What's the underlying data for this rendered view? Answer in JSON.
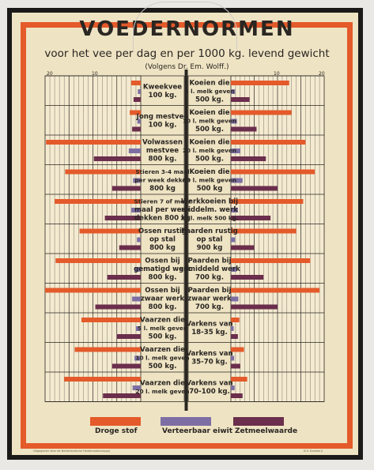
{
  "poster": {
    "title": "VOEDERNORMEN",
    "subtitle": "voor het vee per dag en per 1000 kg. levend gewicht",
    "source": "(Volgens Dr. Em. Wolff.)",
    "footer_left": "Uitgegeven door de Nederlandsche Heidemaatschappij",
    "footer_right": "N.V. Drukkerij"
  },
  "colors": {
    "droge_stof": "#e45a2a",
    "verteerbaar_eiwit": "#7d6fa3",
    "zetmeelwaarde": "#6b2e4c",
    "card": "#eee3c3",
    "frame": "#e45a2a",
    "text": "#2a2622"
  },
  "chart_data": {
    "type": "bar",
    "layout": "mirrored horizontal bars",
    "axis_ticks": {
      "left": [
        "20",
        "10"
      ],
      "right": [
        "10",
        "20"
      ]
    },
    "xlim": [
      0,
      20
    ],
    "legend": [
      "Droge stof",
      "Verteerbaar eiwit",
      "Zetmeelwaarde"
    ],
    "left_panel": [
      {
        "label": [
          "Kweekvee",
          "100 kg."
        ],
        "droge_stof": 2.0,
        "verteerbaar_eiwit": 0.6,
        "zetmeelwaarde": 1.5
      },
      {
        "label": [
          "Jong mestvee",
          "100 kg."
        ],
        "droge_stof": 2.3,
        "verteerbaar_eiwit": 0.7,
        "zetmeelwaarde": 1.8
      },
      {
        "label": [
          "Volwassen",
          "mestvee",
          "800 kg."
        ],
        "droge_stof": 19.8,
        "verteerbaar_eiwit": 2.5,
        "zetmeelwaarde": 9.8
      },
      {
        "label": [
          "Stieren 3-4 maal",
          "per week dekken",
          "800 kg"
        ],
        "droge_stof": 15.8,
        "verteerbaar_eiwit": 1.6,
        "zetmeelwaarde": 6.0
      },
      {
        "label": [
          "Stieren 7 of meer",
          "maal per week",
          "dekken 800 kg"
        ],
        "droge_stof": 18.0,
        "verteerbaar_eiwit": 2.0,
        "zetmeelwaarde": 7.5
      },
      {
        "label": [
          "Ossen rustig",
          "op stal",
          "800 kg"
        ],
        "droge_stof": 12.8,
        "verteerbaar_eiwit": 0.8,
        "zetmeelwaarde": 4.5
      },
      {
        "label": [
          "Ossen bij",
          "gematigd werk",
          "800 kg."
        ],
        "droge_stof": 17.8,
        "verteerbaar_eiwit": 1.3,
        "zetmeelwaarde": 7.0
      },
      {
        "label": [
          "Ossen bij",
          "zwaar werk",
          "800 kg."
        ],
        "droge_stof": 20.0,
        "verteerbaar_eiwit": 1.8,
        "zetmeelwaarde": 9.5
      },
      {
        "label": [
          "Vaarzen die",
          "5 l. melk geven",
          "500 kg."
        ],
        "droge_stof": 12.4,
        "verteerbaar_eiwit": 1.0,
        "zetmeelwaarde": 5.0
      },
      {
        "label": [
          "Vaarzen die",
          "10 l. melk geven",
          "500 kg."
        ],
        "droge_stof": 13.8,
        "verteerbaar_eiwit": 1.3,
        "zetmeelwaarde": 6.0
      },
      {
        "label": [
          "Vaarzen die",
          "20 l. melk geven"
        ],
        "droge_stof": 16.0,
        "verteerbaar_eiwit": 1.7,
        "zetmeelwaarde": 7.9
      }
    ],
    "right_panel": [
      {
        "label": [
          "Koeien die",
          "5 l. melk geven",
          "500 kg."
        ],
        "droge_stof": 12.5,
        "verteerbaar_eiwit": 0.9,
        "zetmeelwaarde": 4.0
      },
      {
        "label": [
          "Koeien die",
          "10 l. melk geven",
          "500 kg."
        ],
        "droge_stof": 13.0,
        "verteerbaar_eiwit": 1.3,
        "zetmeelwaarde": 5.5
      },
      {
        "label": [
          "Koeien die",
          "20 l. melk geven",
          "500 kg."
        ],
        "droge_stof": 16.0,
        "verteerbaar_eiwit": 2.0,
        "zetmeelwaarde": 7.5
      },
      {
        "label": [
          "Koeien die",
          "30 l. melk geven",
          "500 kg"
        ],
        "droge_stof": 18.0,
        "verteerbaar_eiwit": 2.5,
        "zetmeelwaarde": 10.0
      },
      {
        "label": [
          "Werkkoeien bij",
          "middelm. werk",
          "20 l. melk 500 kg."
        ],
        "droge_stof": 15.5,
        "verteerbaar_eiwit": 1.5,
        "zetmeelwaarde": 8.5
      },
      {
        "label": [
          "Paarden rustig",
          "op stal",
          "900 kg"
        ],
        "droge_stof": 14.0,
        "verteerbaar_eiwit": 0.9,
        "zetmeelwaarde": 5.0
      },
      {
        "label": [
          "Paarden bij",
          "gemiddeld werk",
          "700 kg."
        ],
        "droge_stof": 17.0,
        "verteerbaar_eiwit": 1.2,
        "zetmeelwaarde": 7.0
      },
      {
        "label": [
          "Paarden bij",
          "zwaar werk",
          "700 kg."
        ],
        "droge_stof": 19.0,
        "verteerbaar_eiwit": 1.6,
        "zetmeelwaarde": 10.0
      },
      {
        "label": [
          "Varkens van",
          "18-35 kg."
        ],
        "droge_stof": 1.8,
        "verteerbaar_eiwit": 0.6,
        "zetmeelwaarde": 1.5
      },
      {
        "label": [
          "Varkens van",
          "35-70 kg."
        ],
        "droge_stof": 2.8,
        "verteerbaar_eiwit": 0.7,
        "zetmeelwaarde": 2.0
      },
      {
        "label": [
          "Varkens van",
          "70-100 kg."
        ],
        "droge_stof": 3.5,
        "verteerbaar_eiwit": 0.8,
        "zetmeelwaarde": 2.5
      }
    ]
  }
}
